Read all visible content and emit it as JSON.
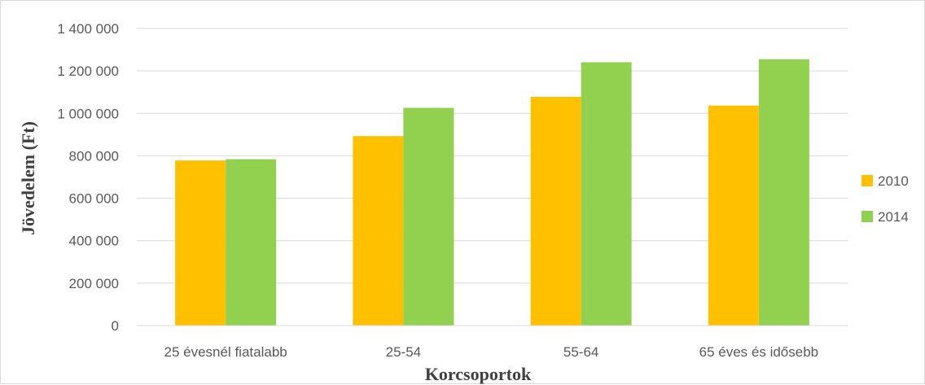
{
  "chart_data": {
    "type": "bar",
    "title": "",
    "xlabel": "Korcsoportok",
    "ylabel": "Jövedelem (Ft)",
    "ylim": [
      0,
      1400000
    ],
    "yticks": [
      0,
      200000,
      400000,
      600000,
      800000,
      1000000,
      1200000,
      1400000
    ],
    "ytick_labels": [
      "0",
      "200 000",
      "400 000",
      "600 000",
      "800 000",
      "1 000 000",
      "1 200 000",
      "1 400 000"
    ],
    "categories": [
      "25 évesnél fiatalabb",
      "25-54",
      "55-64",
      "65 éves és idősebb"
    ],
    "series": [
      {
        "name": "2010",
        "color": "#FFC000",
        "values": [
          778000,
          893000,
          1078000,
          1037000
        ]
      },
      {
        "name": "2014",
        "color": "#92D050",
        "values": [
          784000,
          1026000,
          1241000,
          1255000
        ]
      }
    ],
    "grid": true,
    "legend_position": "right"
  }
}
